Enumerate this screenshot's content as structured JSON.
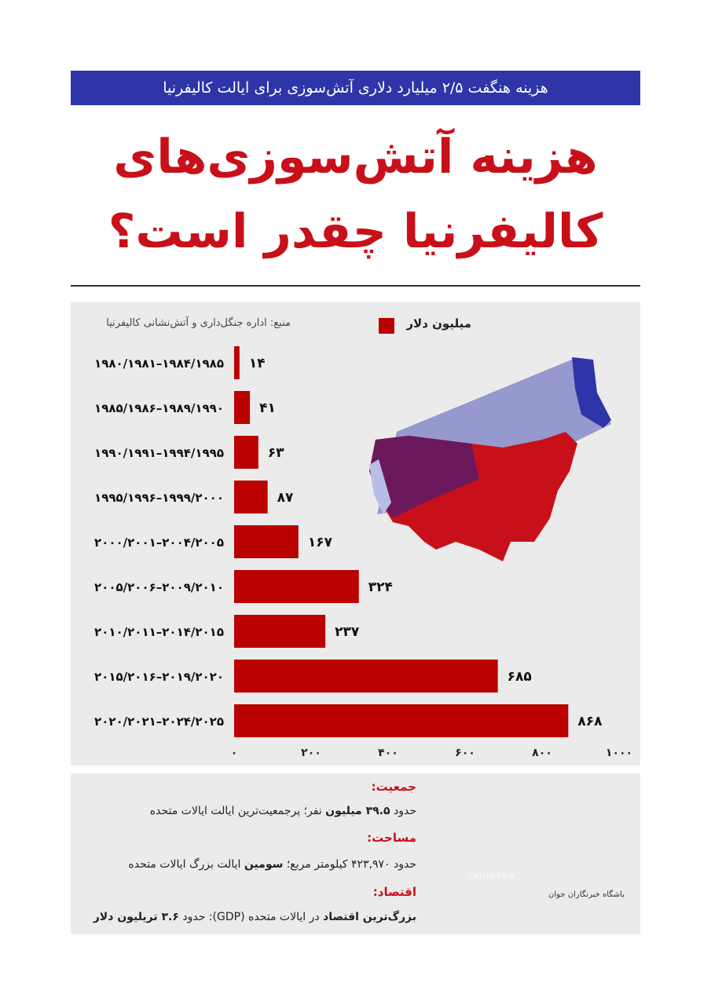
{
  "header": {
    "subtitle": "هزینه هنگفت ۲/۵ میلیارد دلاری آتش‌سوزی برای ایالت کالیفرنیا",
    "title_line1": "هزینه آتش‌سوزی‌های",
    "title_line2": "کالیفرنیا چقدر است؟"
  },
  "chart_data": {
    "type": "bar",
    "orientation": "horizontal",
    "source": "منبع: اداره جنگل‌داری و آتش‌نشانی کالیفرنیا",
    "categories": [
      "۱۹۸۰/۱۹۸۱–۱۹۸۴/۱۹۸۵",
      "۱۹۸۵/۱۹۸۶–۱۹۸۹/۱۹۹۰",
      "۱۹۹۰/۱۹۹۱–۱۹۹۴/۱۹۹۵",
      "۱۹۹۵/۱۹۹۶–۱۹۹۹/۲۰۰۰",
      "۲۰۰۰/۲۰۰۱–۲۰۰۴/۲۰۰۵",
      "۲۰۰۵/۲۰۰۶–۲۰۰۹/۲۰۱۰",
      "۲۰۱۰/۲۰۱۱–۲۰۱۴/۲۰۱۵",
      "۲۰۱۵/۲۰۱۶–۲۰۱۹/۲۰۲۰",
      "۲۰۲۰/۲۰۲۱–۲۰۲۴/۲۰۲۵"
    ],
    "series": [
      {
        "name": "میلیون دلار",
        "color": "#bb0000",
        "values": [
          14,
          41,
          63,
          87,
          167,
          324,
          237,
          685,
          868
        ],
        "value_labels": [
          "۱۴",
          "۴۱",
          "۶۳",
          "۸۷",
          "۱۶۷",
          "۳۲۴",
          "۲۳۷",
          "۶۸۵",
          "۸۶۸"
        ]
      }
    ],
    "xlim": [
      0,
      1000
    ],
    "xticks": [
      {
        "value": 0,
        "label": "۰"
      },
      {
        "value": 200,
        "label": "۲۰۰"
      },
      {
        "value": 400,
        "label": "۴۰۰"
      },
      {
        "value": 600,
        "label": "۶۰۰"
      },
      {
        "value": 800,
        "label": "۸۰۰"
      },
      {
        "value": 1000,
        "label": "۱۰۰۰"
      }
    ],
    "grid": false
  },
  "info": {
    "population": {
      "heading": "جمعیت:",
      "parts": [
        "حدود",
        "۳۹.۵ میلیون",
        "نفر؛ پرجمعیت‌ترین ایالت ایالات متحده"
      ]
    },
    "area": {
      "heading": "مساحت:",
      "parts": [
        "حدود ۴۲۳,۹۷۰ کیلومتر مربع؛",
        "سومین",
        "ایالت بزرگ ایالات متحده"
      ]
    },
    "economy": {
      "heading": "اقتصاد:",
      "parts": [
        "بزرگ‌ترین اقتصاد",
        "در ایالات متحده (GDP): حدود",
        "۳.۶ تریلیون دلار"
      ]
    },
    "map_label": "CALIFORNIA",
    "logo_text": "باشگاه خبرنگاران جوان"
  }
}
